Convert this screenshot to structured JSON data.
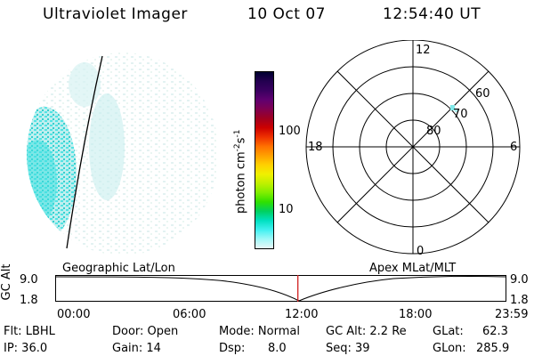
{
  "header": {
    "instrument": "Ultraviolet Imager",
    "date": "10 Oct 07",
    "time": "12:54:40 UT"
  },
  "colorbar": {
    "unit_label": "photon cm-2s-1",
    "ticks": [
      "100",
      "10"
    ],
    "colors": [
      "#000030",
      "#240050",
      "#3a0060",
      "#600070",
      "#800050",
      "#a00020",
      "#cc0000",
      "#ee3000",
      "#ff7000",
      "#ffa000",
      "#ffd000",
      "#f0f000",
      "#c0f000",
      "#80ee00",
      "#30e000",
      "#00d060",
      "#00e0c0",
      "#40f0f0",
      "#a0f8f8",
      "#e8f8f8"
    ]
  },
  "polar": {
    "mlt_labels": {
      "top": "12",
      "left": "18",
      "right": "6",
      "bottom": "0"
    },
    "lat_labels": [
      "80",
      "70",
      "60"
    ]
  },
  "timeline": {
    "left_title": "Geographic Lat/Lon",
    "right_title": "Apex MLat/MLT",
    "ylabel": "GC Alt",
    "y_top": "9.0",
    "y_bottom": "1.8",
    "y_top_right": "9.0",
    "y_bottom_right": "1.8",
    "time_ticks": [
      "00:00",
      "06:00",
      "12:00",
      "18:00",
      "23:59"
    ],
    "current_time_fraction": 0.538
  },
  "info": {
    "flt": "Flt: LBHL",
    "ip": "IP: 36.0",
    "door": "Door: Open",
    "gain": "Gain: 14",
    "mode": "Mode: Normal",
    "dsp_label": "Dsp:",
    "dsp_value": "8.0",
    "gc_alt": "GC Alt: 2.2 Re",
    "seq": "Seq: 39",
    "glat_label": "GLat:",
    "glat_value": "62.3",
    "glon_label": "GLon:",
    "glon_value": "285.9"
  }
}
